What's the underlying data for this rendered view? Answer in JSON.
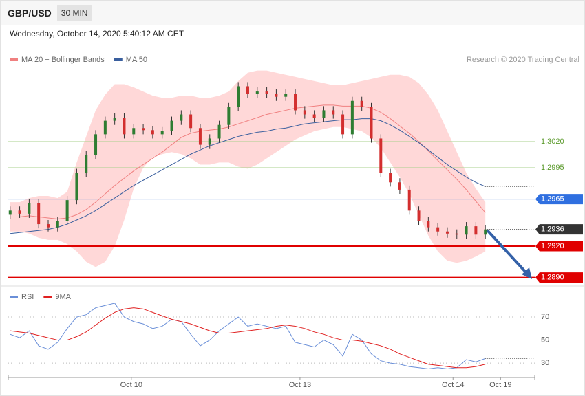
{
  "header": {
    "symbol": "GBP/USD",
    "interval": "30 MIN",
    "timestamp": "Wednesday, October 14, 2020 5:40:12 AM CET",
    "credit": "Research © 2020 Trading Central"
  },
  "chart_data": [
    {
      "type": "candlestick",
      "xlim": [
        -0.2,
        55.2
      ],
      "ylim": [
        1.28838,
        1.30924
      ],
      "up_color": "#2e7d32",
      "down_color": "#d32f2f",
      "open": [
        1.295,
        1.2954,
        1.2951,
        1.2961,
        1.2941,
        1.2938,
        1.2944,
        1.2964,
        1.299,
        1.3007,
        1.3027,
        1.304,
        1.3043,
        1.3027,
        1.3033,
        1.3031,
        1.3027,
        1.303,
        1.304,
        1.3046,
        1.3033,
        1.3017,
        1.3023,
        1.3036,
        1.3053,
        1.3073,
        1.3066,
        1.3068,
        1.3066,
        1.3063,
        1.3066,
        1.305,
        1.3046,
        1.3043,
        1.305,
        1.3046,
        1.3027,
        1.3059,
        1.3053,
        1.3023,
        1.299,
        1.2981,
        1.2974,
        1.2954,
        1.2944,
        1.2938,
        1.2934,
        1.2932,
        1.2931,
        1.2939,
        1.2931
      ],
      "high": [
        1.2958,
        1.2958,
        1.2965,
        1.2965,
        1.2945,
        1.2948,
        1.2968,
        1.2994,
        1.3011,
        1.3031,
        1.3044,
        1.3047,
        1.3047,
        1.3037,
        1.3037,
        1.3035,
        1.3034,
        1.3044,
        1.305,
        1.305,
        1.3037,
        1.3027,
        1.304,
        1.3057,
        1.3077,
        1.3077,
        1.3072,
        1.3072,
        1.307,
        1.307,
        1.307,
        1.3054,
        1.305,
        1.3054,
        1.3054,
        1.305,
        1.3063,
        1.3063,
        1.3057,
        1.3027,
        1.2994,
        1.2985,
        1.2978,
        1.2958,
        1.2948,
        1.2942,
        1.2938,
        1.2936,
        1.2943,
        1.2943,
        1.294
      ],
      "low": [
        1.2946,
        1.2947,
        1.2947,
        1.2937,
        1.2934,
        1.2934,
        1.294,
        1.296,
        1.2986,
        1.3003,
        1.3023,
        1.3036,
        1.3023,
        1.3023,
        1.3027,
        1.3023,
        1.3023,
        1.3026,
        1.3036,
        1.3029,
        1.3013,
        1.3013,
        1.3019,
        1.3032,
        1.3049,
        1.3062,
        1.3062,
        1.3062,
        1.3059,
        1.3059,
        1.3046,
        1.3042,
        1.3039,
        1.3039,
        1.3042,
        1.3023,
        1.3023,
        1.3049,
        1.3019,
        1.2986,
        1.2977,
        1.297,
        1.295,
        1.294,
        1.2934,
        1.293,
        1.2928,
        1.2927,
        1.2927,
        1.2927,
        1.2927
      ],
      "close": [
        1.2954,
        1.2951,
        1.2961,
        1.2941,
        1.2938,
        1.2944,
        1.2964,
        1.299,
        1.3007,
        1.3027,
        1.304,
        1.3043,
        1.3027,
        1.3033,
        1.3031,
        1.3027,
        1.303,
        1.304,
        1.3046,
        1.3033,
        1.3017,
        1.3023,
        1.3036,
        1.3053,
        1.3073,
        1.3066,
        1.3068,
        1.3066,
        1.3063,
        1.3066,
        1.305,
        1.3046,
        1.3043,
        1.305,
        1.3046,
        1.3027,
        1.3059,
        1.3053,
        1.3023,
        1.299,
        1.2981,
        1.2974,
        1.2954,
        1.2944,
        1.2938,
        1.2934,
        1.2932,
        1.2931,
        1.2939,
        1.2931,
        1.2936
      ],
      "series": [
        {
          "name": "MA 20 + Bollinger Bands",
          "color": "#f08080",
          "band_color": "#ffd8d8",
          "values": [
            1.2948,
            1.2948,
            1.2949,
            1.2948,
            1.2947,
            1.2946,
            1.2947,
            1.295,
            1.2955,
            1.2962,
            1.297,
            1.2978,
            1.2985,
            1.2992,
            1.2998,
            1.3004,
            1.301,
            1.3017,
            1.3024,
            1.3028,
            1.303,
            1.3031,
            1.3032,
            1.3034,
            1.3037,
            1.304,
            1.3043,
            1.3046,
            1.3048,
            1.305,
            1.3052,
            1.3053,
            1.3054,
            1.3055,
            1.3055,
            1.3054,
            1.3054,
            1.3054,
            1.3052,
            1.3048,
            1.3042,
            1.3035,
            1.3028,
            1.302,
            1.3011,
            1.3002,
            1.2993,
            1.2984,
            1.2974,
            1.2963,
            1.2952
          ],
          "upper": [
            1.2962,
            1.2962,
            1.2966,
            1.2968,
            1.2968,
            1.2966,
            1.2972,
            1.3,
            1.3025,
            1.305,
            1.3065,
            1.3075,
            1.3075,
            1.3072,
            1.3068,
            1.3064,
            1.3062,
            1.3062,
            1.3064,
            1.3064,
            1.3062,
            1.3062,
            1.3064,
            1.3068,
            1.3078,
            1.3086,
            1.3088,
            1.3088,
            1.3086,
            1.3084,
            1.3082,
            1.308,
            1.3078,
            1.3076,
            1.3074,
            1.3074,
            1.3076,
            1.3078,
            1.308,
            1.3082,
            1.3084,
            1.3084,
            1.3082,
            1.3076,
            1.3065,
            1.305,
            1.303,
            1.301,
            1.299,
            1.2975,
            1.2962
          ],
          "lower": [
            1.2934,
            1.2934,
            1.2932,
            1.2928,
            1.2926,
            1.2926,
            1.2922,
            1.2915,
            1.2905,
            1.29,
            1.2905,
            1.292,
            1.2945,
            1.2975,
            1.2995,
            1.3005,
            1.3008,
            1.301,
            1.3008,
            1.3004,
            1.2998,
            1.2998,
            1.3,
            1.3,
            1.2996,
            1.2994,
            1.2998,
            1.3004,
            1.301,
            1.3016,
            1.3022,
            1.3026,
            1.303,
            1.3032,
            1.3034,
            1.3034,
            1.3032,
            1.303,
            1.3024,
            1.3014,
            1.3,
            1.2986,
            1.297,
            1.295,
            1.293,
            1.2915,
            1.2906,
            1.2904,
            1.2906,
            1.291,
            1.2915
          ]
        },
        {
          "name": "MA 50",
          "color": "#3a5f9e",
          "values": [
            1.2932,
            1.2933,
            1.2934,
            1.2935,
            1.2936,
            1.2938,
            1.2941,
            1.2945,
            1.2949,
            1.2954,
            1.296,
            1.2966,
            1.2972,
            1.2978,
            1.2983,
            1.2988,
            1.2993,
            1.2998,
            1.3003,
            1.3008,
            1.3012,
            1.3016,
            1.3019,
            1.3022,
            1.3025,
            1.3027,
            1.3029,
            1.303,
            1.3032,
            1.3033,
            1.3035,
            1.3037,
            1.3038,
            1.3039,
            1.304,
            1.3041,
            1.3041,
            1.3042,
            1.3042,
            1.304,
            1.3036,
            1.3031,
            1.3025,
            1.3019,
            1.3012,
            1.3005,
            1.2998,
            1.2992,
            1.2986,
            1.2981,
            1.2977
          ]
        }
      ],
      "levels": [
        {
          "value": 1.302,
          "label": "1.3020",
          "color": "#a8d08d",
          "label_color": "#5b9a2c",
          "box": false
        },
        {
          "value": 1.2995,
          "label": "1.2995",
          "color": "#a8d08d",
          "label_color": "#5b9a2c",
          "box": false
        },
        {
          "value": 1.2965,
          "label": "1.2965",
          "color": "#5a8ad8",
          "label_color": "#2f6fe0",
          "box": true
        },
        {
          "value": 1.292,
          "label": "1.2920",
          "color": "#e00000",
          "label_color": "#e00000",
          "box": true
        },
        {
          "value": 1.289,
          "label": "1.2890",
          "color": "#e00000",
          "label_color": "#e00000",
          "box": true
        }
      ],
      "last": {
        "value": 1.2936,
        "label": "1.2936",
        "color": "#333333"
      }
    },
    {
      "type": "line",
      "xlim": [
        -0.2,
        55.2
      ],
      "ylim": [
        19.3,
        93.9
      ],
      "yticks": [
        30,
        50,
        70
      ],
      "xticks": [
        {
          "value": 12.75,
          "label": "Oct 10"
        },
        {
          "value": 30.5,
          "label": "Oct 13"
        },
        {
          "value": 46.6,
          "label": "Oct 14"
        },
        {
          "value": 51.6,
          "label": "Oct 19"
        }
      ],
      "series": [
        {
          "name": "RSI",
          "color": "#6a8fd8",
          "values": [
            55,
            52,
            58,
            45,
            42,
            48,
            60,
            70,
            72,
            78,
            80,
            82,
            70,
            66,
            64,
            60,
            62,
            68,
            66,
            55,
            45,
            50,
            58,
            64,
            70,
            62,
            64,
            62,
            60,
            62,
            48,
            46,
            44,
            50,
            46,
            36,
            55,
            50,
            38,
            32,
            30,
            29,
            27,
            26,
            25,
            26,
            25,
            26,
            33,
            31,
            34
          ]
        },
        {
          "name": "9MA",
          "color": "#e02020",
          "values": [
            58,
            57,
            56,
            54,
            52,
            50,
            50,
            53,
            57,
            63,
            69,
            74,
            77,
            78,
            77,
            74,
            71,
            68,
            66,
            64,
            61,
            58,
            56,
            56,
            57,
            58,
            59,
            60,
            62,
            63,
            62,
            60,
            57,
            55,
            52,
            50,
            50,
            49,
            47,
            45,
            42,
            38,
            35,
            32,
            29,
            28,
            27,
            26,
            26,
            27,
            29
          ]
        }
      ]
    }
  ]
}
